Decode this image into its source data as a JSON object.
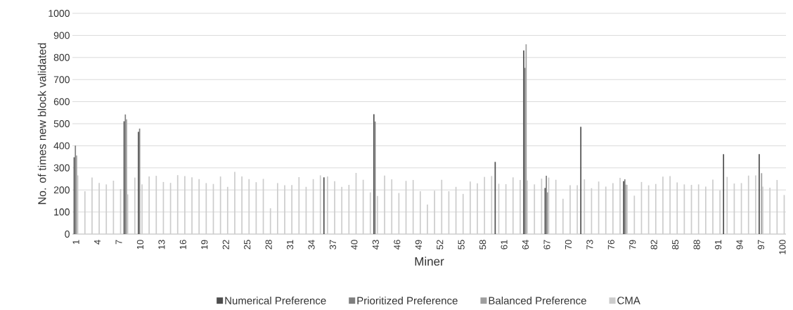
{
  "chart_data": {
    "type": "bar",
    "xlabel": "Miner",
    "ylabel": "No. of times new block validated",
    "categories": [
      "1",
      null,
      null,
      "4",
      null,
      null,
      "7",
      null,
      null,
      "10",
      null,
      null,
      "13",
      null,
      null,
      "16",
      null,
      null,
      "19",
      null,
      null,
      "22",
      null,
      null,
      "25",
      null,
      null,
      "28",
      null,
      null,
      "31",
      null,
      null,
      "34",
      null,
      null,
      "37",
      null,
      null,
      "40",
      null,
      null,
      "43",
      null,
      null,
      "46",
      null,
      null,
      "49",
      null,
      null,
      "52",
      null,
      null,
      "55",
      null,
      null,
      "58",
      null,
      null,
      "61",
      null,
      null,
      "64",
      null,
      null,
      "67",
      null,
      null,
      "70",
      null,
      null,
      "73",
      null,
      null,
      "76",
      null,
      null,
      "79",
      null,
      null,
      "82",
      null,
      null,
      "85",
      null,
      null,
      "88",
      null,
      null,
      "91",
      null,
      null,
      "94",
      null,
      null,
      "97",
      null,
      null,
      "100"
    ],
    "series": [
      {
        "name": "Numerical Preference",
        "color": "#4d4d4d",
        "values": [
          348,
          0,
          0,
          0,
          0,
          0,
          0,
          511,
          0,
          463,
          0,
          0,
          0,
          0,
          0,
          0,
          0,
          0,
          0,
          0,
          0,
          0,
          0,
          0,
          0,
          0,
          0,
          0,
          0,
          0,
          0,
          0,
          0,
          0,
          0,
          257,
          0,
          0,
          0,
          0,
          0,
          0,
          543,
          0,
          0,
          0,
          0,
          0,
          0,
          0,
          0,
          0,
          0,
          0,
          0,
          0,
          0,
          0,
          0,
          327,
          0,
          0,
          0,
          832,
          0,
          0,
          209,
          0,
          0,
          0,
          0,
          486,
          0,
          0,
          0,
          0,
          0,
          240,
          0,
          0,
          0,
          0,
          0,
          0,
          0,
          0,
          0,
          0,
          0,
          0,
          0,
          362,
          0,
          0,
          0,
          0,
          362,
          0,
          0,
          0
        ]
      },
      {
        "name": "Prioritized Preference",
        "color": "#7f7f7f",
        "values": [
          401,
          0,
          0,
          0,
          0,
          0,
          0,
          542,
          0,
          478,
          0,
          0,
          0,
          0,
          0,
          0,
          0,
          0,
          0,
          0,
          0,
          0,
          0,
          0,
          0,
          0,
          0,
          0,
          0,
          0,
          0,
          0,
          0,
          0,
          0,
          0,
          0,
          0,
          0,
          0,
          0,
          0,
          510,
          0,
          0,
          0,
          0,
          0,
          0,
          0,
          0,
          0,
          0,
          0,
          0,
          0,
          0,
          0,
          0,
          0,
          0,
          0,
          0,
          753,
          0,
          0,
          264,
          0,
          0,
          0,
          0,
          0,
          0,
          0,
          0,
          0,
          0,
          248,
          0,
          0,
          0,
          0,
          0,
          0,
          0,
          0,
          0,
          0,
          0,
          0,
          0,
          0,
          0,
          0,
          0,
          0,
          0,
          0,
          0,
          0
        ]
      },
      {
        "name": "Balanced Preference",
        "color": "#9e9e9e",
        "values": [
          356,
          0,
          0,
          0,
          0,
          0,
          0,
          520,
          0,
          0,
          0,
          0,
          0,
          0,
          0,
          0,
          0,
          0,
          0,
          0,
          0,
          0,
          0,
          0,
          0,
          0,
          0,
          0,
          0,
          0,
          0,
          0,
          0,
          0,
          0,
          0,
          0,
          0,
          0,
          0,
          0,
          0,
          0,
          0,
          0,
          0,
          0,
          0,
          0,
          0,
          0,
          0,
          0,
          0,
          0,
          0,
          0,
          0,
          0,
          0,
          0,
          0,
          0,
          860,
          0,
          0,
          189,
          0,
          0,
          0,
          0,
          0,
          0,
          0,
          0,
          0,
          0,
          224,
          0,
          0,
          0,
          0,
          0,
          0,
          0,
          0,
          0,
          0,
          0,
          0,
          0,
          0,
          0,
          0,
          0,
          0,
          276,
          0,
          0,
          0
        ]
      },
      {
        "name": "CMA",
        "color": "#cccccc",
        "values": [
          266,
          194,
          256,
          232,
          225,
          242,
          204,
          180,
          256,
          225,
          261,
          264,
          236,
          232,
          267,
          263,
          257,
          249,
          231,
          227,
          261,
          214,
          282,
          261,
          249,
          235,
          250,
          117,
          231,
          221,
          222,
          258,
          214,
          249,
          266,
          261,
          240,
          214,
          223,
          277,
          246,
          189,
          173,
          265,
          248,
          186,
          241,
          245,
          194,
          134,
          197,
          246,
          194,
          214,
          182,
          238,
          230,
          259,
          263,
          228,
          226,
          257,
          245,
          243,
          225,
          251,
          256,
          246,
          160,
          221,
          221,
          248,
          208,
          238,
          215,
          231,
          255,
          223,
          174,
          236,
          221,
          227,
          260,
          263,
          234,
          225,
          223,
          225,
          215,
          247,
          198,
          259,
          229,
          231,
          265,
          266,
          215,
          210,
          245,
          177
        ]
      }
    ],
    "ylim": [
      0,
      1000
    ],
    "yticks": [
      0,
      100,
      200,
      300,
      400,
      500,
      600,
      700,
      800,
      900,
      1000
    ],
    "grid": "y",
    "legend": "bottom"
  }
}
